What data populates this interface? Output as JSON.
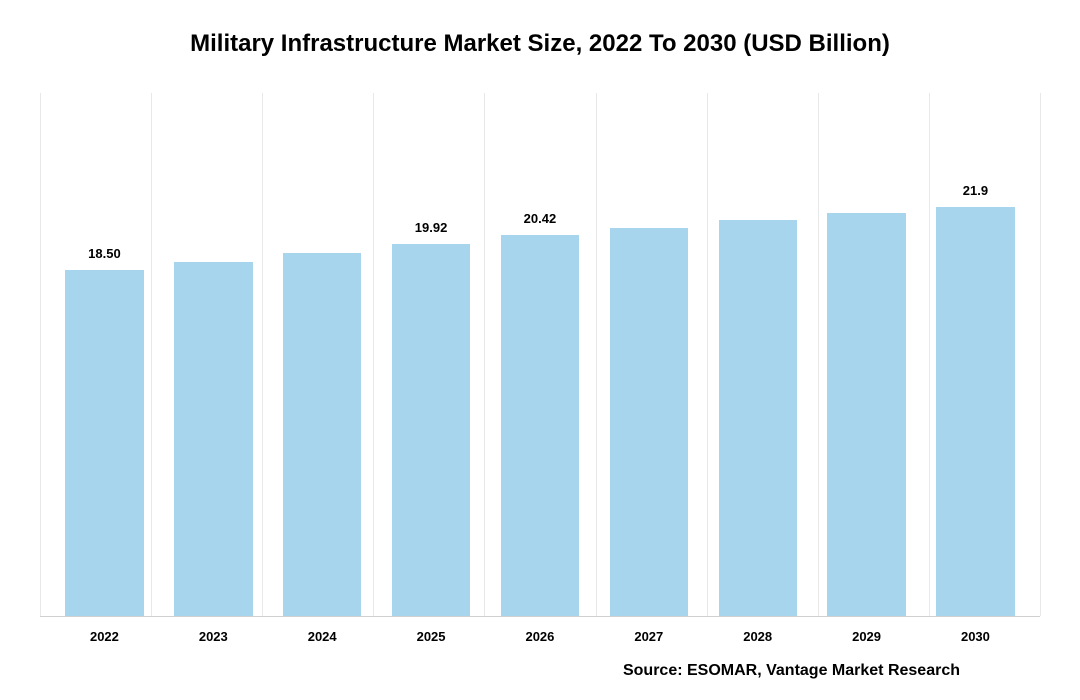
{
  "chart": {
    "type": "bar",
    "title": "Military Infrastructure Market Size, 2022 To 2030 (USD Billion)",
    "title_fontsize": 24,
    "title_weight": 700,
    "background_color": "#ffffff",
    "grid_color": "#e8e8e8",
    "axis_color": "#d0d0d0",
    "bar_color": "#a6d5ed",
    "categories": [
      "2022",
      "2023",
      "2024",
      "2025",
      "2026",
      "2027",
      "2028",
      "2029",
      "2030"
    ],
    "values": [
      18.5,
      18.97,
      19.44,
      19.92,
      20.42,
      20.8,
      21.2,
      21.55,
      21.9
    ],
    "value_labels": [
      "18.50",
      "",
      "",
      "19.92",
      "20.42",
      "",
      "",
      "",
      "21.9"
    ],
    "y_max": 28,
    "bar_width_pct": 72,
    "label_fontsize": 13,
    "xtick_fontsize": 13,
    "source": "Source: ESOMAR, Vantage Market Research",
    "source_fontsize": 16
  }
}
